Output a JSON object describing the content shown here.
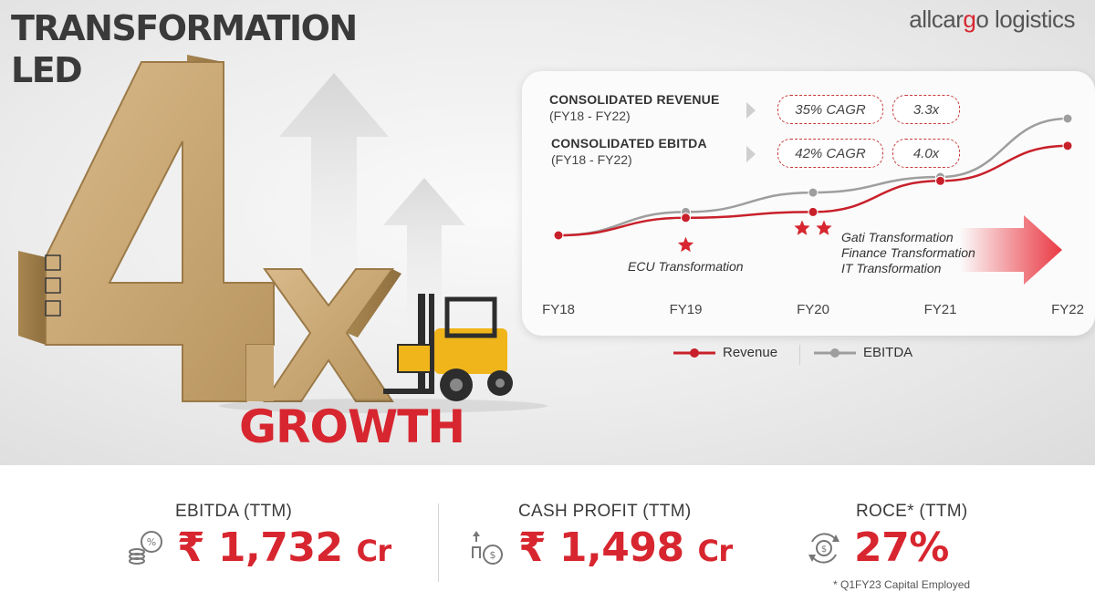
{
  "header": {
    "title_line1": "TRANSFORMATION",
    "title_line2": "LED",
    "brand_part1": "allcar",
    "brand_accent": "g",
    "brand_part2": "o logistics"
  },
  "hero": {
    "big_number": "4",
    "multiplier": "x",
    "tagline": "GROWTH"
  },
  "metrics": [
    {
      "label": "CONSOLIDATED REVENUE",
      "period": "(FY18 - FY22)",
      "cagr": "35% CAGR",
      "multiple": "3.3x"
    },
    {
      "label": "CONSOLIDATED EBITDA",
      "period": "(FY18 - FY22)",
      "cagr": "42% CAGR",
      "multiple": "4.0x"
    }
  ],
  "notes": {
    "ecu": "ECU Transformation",
    "gati": "Gati Transformation",
    "finance": "Finance Transformation",
    "it": "IT Transformation"
  },
  "legend": {
    "revenue": "Revenue",
    "ebitda": "EBITDA"
  },
  "kpis": [
    {
      "label": "EBITDA (TTM)",
      "value": "₹ 1,732",
      "unit": "Cr",
      "icon": "coins-percent-icon"
    },
    {
      "label": "CASH PROFIT (TTM)",
      "value": "₹ 1,498",
      "unit": "Cr",
      "icon": "cash-growth-icon"
    },
    {
      "label": "ROCE* (TTM)",
      "value": "27%",
      "unit": "",
      "icon": "dollar-cycle-icon"
    }
  ],
  "footnote": "* Q1FY23 Capital Employed",
  "colors": {
    "accent": "#d7262f",
    "revenue_line": "#c8202a",
    "ebitda_line": "#9e9e9e",
    "title": "#3a3a3a"
  },
  "chart_data": {
    "type": "line",
    "categories": [
      "FY18",
      "FY19",
      "FY20",
      "FY21",
      "FY22"
    ],
    "series": [
      {
        "name": "Revenue",
        "values": [
          1.0,
          1.45,
          1.6,
          2.4,
          3.3
        ]
      },
      {
        "name": "EBITDA",
        "values": [
          1.0,
          1.6,
          2.1,
          2.5,
          4.0
        ]
      }
    ],
    "markers": [
      {
        "category": "FY19",
        "stars": 1,
        "label": "ECU Transformation"
      },
      {
        "category": "FY20",
        "stars": 2,
        "label": "Gati Transformation / Finance Transformation / IT Transformation"
      }
    ],
    "legend": "bottom",
    "grid": false
  }
}
